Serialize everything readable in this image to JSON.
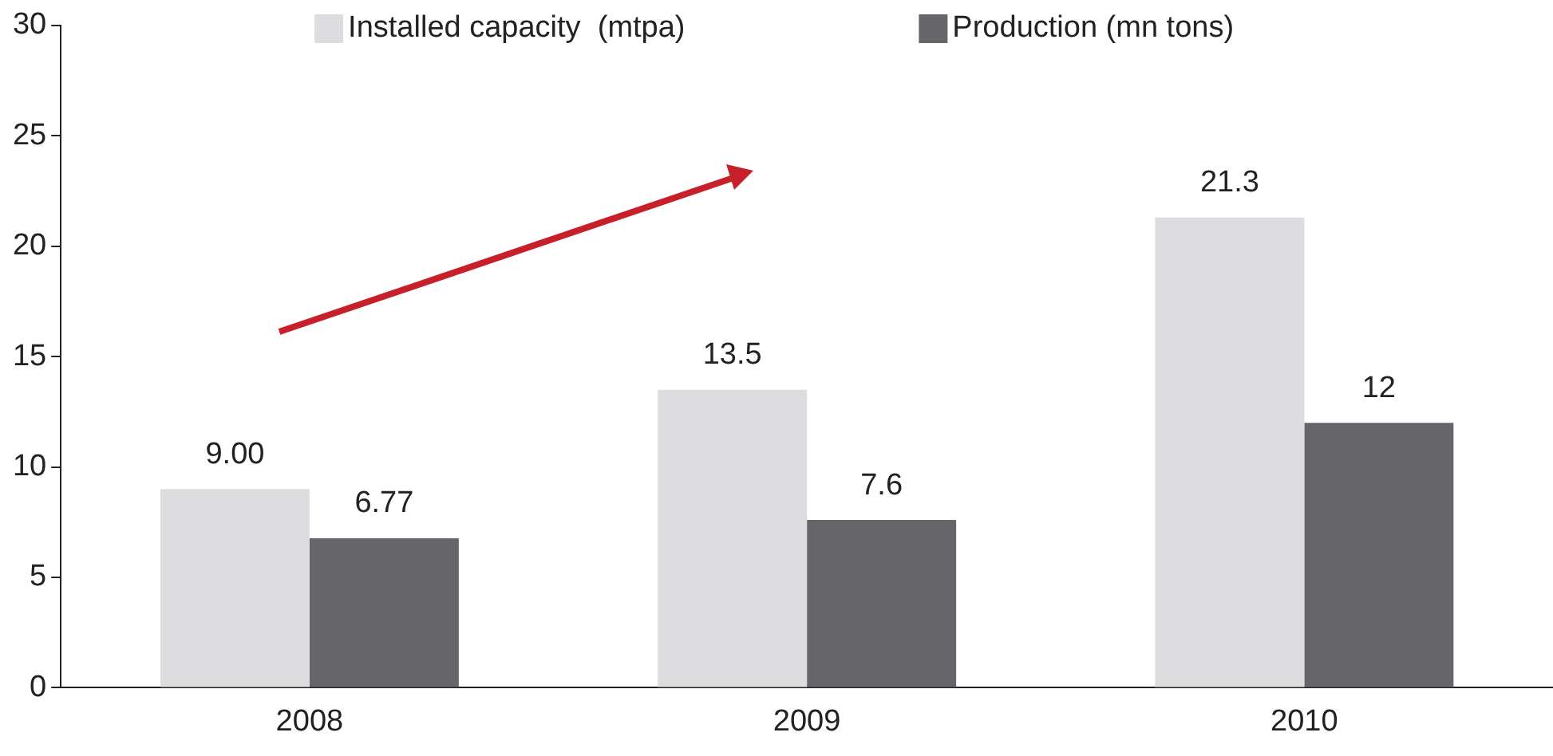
{
  "chart_data": {
    "type": "bar",
    "categories": [
      "2008",
      "2009",
      "2010"
    ],
    "series": [
      {
        "name": "Installed capacity  (mtpa)",
        "color": "#dddddf",
        "values": [
          9.0,
          13.5,
          21.3
        ],
        "value_labels": [
          "9.00",
          "13.5",
          "21.3"
        ]
      },
      {
        "name": "Production (mn tons)",
        "color": "#666569",
        "values": [
          6.77,
          7.6,
          12
        ],
        "value_labels": [
          "6.77",
          "7.6",
          "12"
        ]
      }
    ],
    "ylim": [
      0,
      30
    ],
    "yticks": [
      0,
      5,
      10,
      15,
      20,
      25,
      30
    ],
    "grid": false,
    "legend": "top"
  }
}
